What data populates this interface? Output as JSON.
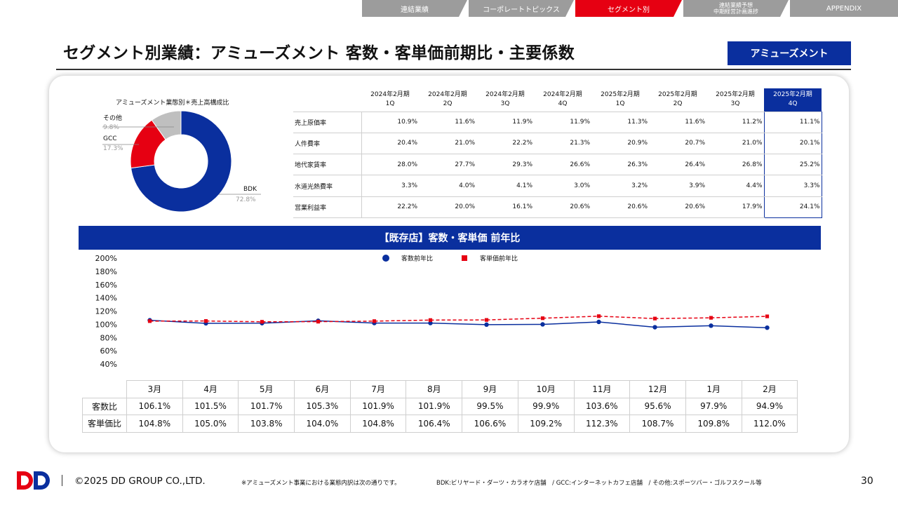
{
  "nav": {
    "tabs": [
      {
        "label": "連結業績",
        "active": false
      },
      {
        "label": "コーポレートトピックス",
        "active": false
      },
      {
        "label": "セグメント別",
        "active": true
      },
      {
        "label_line1": "連結業績予想",
        "label_line2": "中期経営計画進捗",
        "active": false
      },
      {
        "label": "APPENDIX",
        "active": false
      }
    ]
  },
  "page": {
    "title": "セグメント別業績：アミューズメント 客数・客単価前期比・主要係数",
    "badge": "アミューズメント"
  },
  "colors": {
    "brand_blue": "#0a2f9e",
    "accent_red": "#e60012",
    "nav_gray": "#9c9c9c",
    "donut_gray": "#bfbfbf"
  },
  "donut": {
    "title": "アミューズメント業態別＊売上高構成比",
    "segments": [
      {
        "name": "BDK",
        "value": "72.8%",
        "share": 72.8,
        "color": "#0a2f9e"
      },
      {
        "name": "GCC",
        "value": "17.3%",
        "share": 17.3,
        "color": "#e60012"
      },
      {
        "name": "その他",
        "value": "9.8%",
        "share": 9.8,
        "color": "#bfbfbf"
      }
    ]
  },
  "kpi_table": {
    "periods": [
      {
        "l1": "2024年2月期",
        "l2": "1Q"
      },
      {
        "l1": "2024年2月期",
        "l2": "2Q"
      },
      {
        "l1": "2024年2月期",
        "l2": "3Q"
      },
      {
        "l1": "2024年2月期",
        "l2": "4Q"
      },
      {
        "l1": "2025年2月期",
        "l2": "1Q"
      },
      {
        "l1": "2025年2月期",
        "l2": "2Q"
      },
      {
        "l1": "2025年2月期",
        "l2": "3Q"
      },
      {
        "l1": "2025年2月期",
        "l2": "4Q"
      }
    ],
    "rows": [
      {
        "label": "売上原価率",
        "values": [
          "10.9%",
          "11.6%",
          "11.9%",
          "11.9%",
          "11.3%",
          "11.6%",
          "11.2%",
          "11.1%"
        ]
      },
      {
        "label": "人件費率",
        "values": [
          "20.4%",
          "21.0%",
          "22.2%",
          "21.3%",
          "20.9%",
          "20.7%",
          "21.0%",
          "20.1%"
        ]
      },
      {
        "label": "地代家賃率",
        "values": [
          "28.0%",
          "27.7%",
          "29.3%",
          "26.6%",
          "26.3%",
          "26.4%",
          "26.8%",
          "25.2%"
        ]
      },
      {
        "label": "水道光熱費率",
        "values": [
          "3.3%",
          "4.0%",
          "4.1%",
          "3.0%",
          "3.2%",
          "3.9%",
          "4.4%",
          "3.3%"
        ]
      },
      {
        "label": "営業利益率",
        "values": [
          "22.2%",
          "20.0%",
          "16.1%",
          "20.6%",
          "20.6%",
          "20.6%",
          "17.9%",
          "24.1%"
        ]
      }
    ]
  },
  "section": {
    "band_title": "【既存店】客数・客単価 前年比"
  },
  "chart_data": {
    "type": "line",
    "categories": [
      "3月",
      "4月",
      "5月",
      "6月",
      "7月",
      "8月",
      "9月",
      "10月",
      "11月",
      "12月",
      "1月",
      "2月"
    ],
    "series": [
      {
        "name": "客数前年比",
        "values": [
          106.1,
          101.5,
          101.7,
          105.3,
          101.9,
          101.9,
          99.5,
          99.9,
          103.6,
          95.6,
          97.9,
          94.9
        ],
        "color": "#0a2f9e",
        "marker": "circle",
        "style": "solid"
      },
      {
        "name": "客単価前年比",
        "values": [
          104.8,
          105.0,
          103.8,
          104.0,
          104.8,
          106.4,
          106.6,
          109.2,
          112.3,
          108.7,
          109.8,
          112.0
        ],
        "color": "#e60012",
        "marker": "square",
        "style": "dashed"
      }
    ],
    "yticks": [
      "200%",
      "180%",
      "160%",
      "140%",
      "120%",
      "100%",
      "80%",
      "60%",
      "40%"
    ],
    "ylim": [
      40,
      200
    ],
    "grid": false,
    "legend": "top-center"
  },
  "monthly_table": {
    "rows": [
      {
        "label": "客数比",
        "values": [
          "106.1%",
          "101.5%",
          "101.7%",
          "105.3%",
          "101.9%",
          "101.9%",
          "99.5%",
          "99.9%",
          "103.6%",
          "95.6%",
          "97.9%",
          "94.9%"
        ]
      },
      {
        "label": "客単価比",
        "values": [
          "104.8%",
          "105.0%",
          "103.8%",
          "104.0%",
          "104.8%",
          "106.4%",
          "106.6%",
          "109.2%",
          "112.3%",
          "108.7%",
          "109.8%",
          "112.0%"
        ]
      }
    ]
  },
  "footer": {
    "copyright": "©2025 DD GROUP CO.,LTD.",
    "note": "※アミューズメント事業における業態内訳は次の通りです。",
    "note_detail": "BDK:ビリヤード・ダーツ・カラオケ店舗　/ GCC:インターネットカフェ店舗　/ その他:スポーツバー・ゴルフスクール等",
    "page_number": "30",
    "logo_text": "DD"
  }
}
